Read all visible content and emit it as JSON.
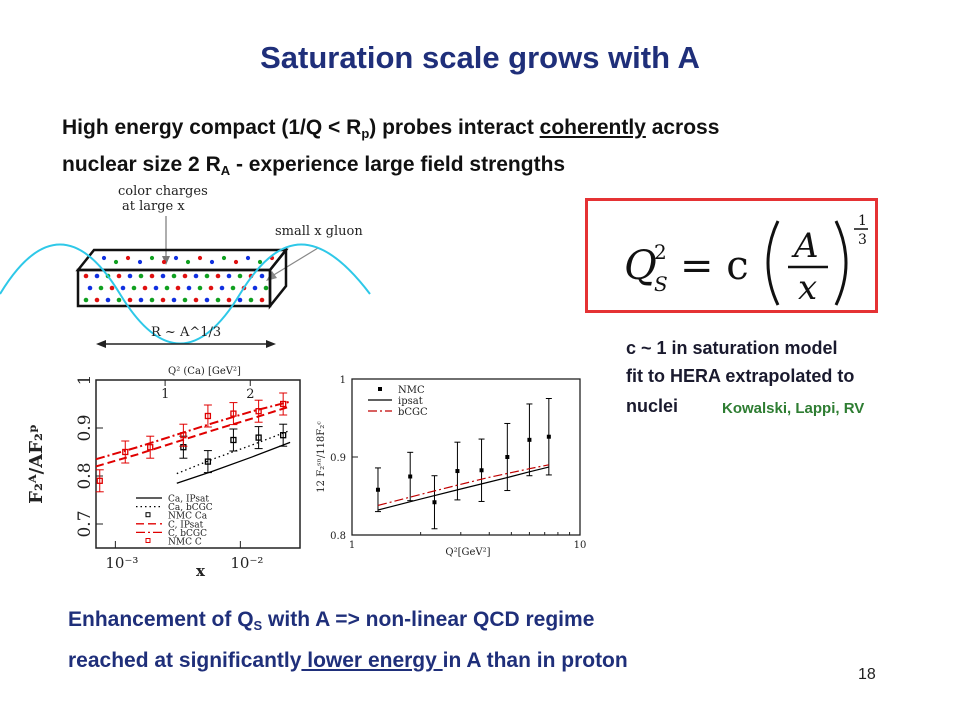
{
  "title": "Saturation scale grows with A",
  "intro": {
    "line1_a": "High energy compact (1/Q < R",
    "line1_sub": "p",
    "line1_b": ") probes interact ",
    "line1_u": "coherently",
    "line1_c": " across",
    "line2_a": "nuclear size 2 R",
    "line2_sub": "A",
    "line2_b": " - experience large field strengths"
  },
  "sketch": {
    "label_color_charges_1": "color charges",
    "label_color_charges_2": "at large x",
    "label_gluon": "small x gluon",
    "label_r": "R ~ A^1/3"
  },
  "formula": {
    "q": "Q",
    "sup2": "2",
    "sub_s": "S",
    "eq": "= c",
    "num": "A",
    "den": "x",
    "exp_num": "1",
    "exp_den": "3"
  },
  "note": {
    "line1": "c ~ 1 in saturation model",
    "line2": "fit to HERA extrapolated to",
    "line3": "nuclei",
    "refs": "Kowalski, Lappi, RV"
  },
  "conclusion": {
    "line1_a": "Enhancement of Q",
    "line1_sub": "S",
    "line1_b": " with A =>  non-linear QCD regime",
    "line2_a": "reached at significantly",
    "line2_u": " lower energy ",
    "line2_b": " in A than in proton"
  },
  "page_number": "18",
  "colors": {
    "title": "#1f2f7a",
    "box": "#e53234",
    "wave": "#2ec8e8",
    "refs": "#2e7d32"
  },
  "chart_data": [
    {
      "type": "line",
      "title": "",
      "top_axis_label": "Q² (Ca) [GeV²]",
      "top_ticks": [
        "1",
        "2"
      ],
      "xlabel": "x",
      "ylabel": "F₂ᴬ/AF₂ᵖ",
      "xscale": "log",
      "xlim": [
        0.0007,
        0.03
      ],
      "ylim": [
        0.65,
        1.0
      ],
      "x_ticks": [
        "10⁻³",
        "10⁻²"
      ],
      "y_ticks": [
        "0.7",
        "0.8",
        "0.9",
        "1"
      ],
      "legend": [
        "Ca, IPsat",
        "Ca, bCGC",
        "NMC Ca",
        "C, IPsat",
        "C, bCGC",
        "NMC C"
      ],
      "series": [
        {
          "name": "Ca, IPsat",
          "color": "#000000",
          "style": "solid",
          "x": [
            0.0031,
            0.006,
            0.0125,
            0.025
          ],
          "y": [
            0.785,
            0.81,
            0.84,
            0.87
          ]
        },
        {
          "name": "Ca, bCGC",
          "color": "#000000",
          "style": "dotted",
          "x": [
            0.0031,
            0.006,
            0.0125,
            0.025
          ],
          "y": [
            0.805,
            0.835,
            0.865,
            0.895
          ]
        },
        {
          "name": "NMC Ca",
          "color": "#000000",
          "style": "points",
          "x": [
            0.0035,
            0.0055,
            0.0088,
            0.014,
            0.022
          ],
          "y": [
            0.86,
            0.83,
            0.875,
            0.88,
            0.885
          ]
        },
        {
          "name": "C, IPsat",
          "color": "#e00000",
          "style": "dashed",
          "x": [
            0.0007,
            0.0015,
            0.003,
            0.006,
            0.0125,
            0.025
          ],
          "y": [
            0.82,
            0.845,
            0.87,
            0.895,
            0.92,
            0.945
          ]
        },
        {
          "name": "C, bCGC",
          "color": "#e00000",
          "style": "dashdot",
          "x": [
            0.0007,
            0.0015,
            0.003,
            0.006,
            0.0125,
            0.025
          ],
          "y": [
            0.835,
            0.86,
            0.885,
            0.91,
            0.935,
            0.955
          ]
        },
        {
          "name": "NMC C",
          "color": "#e00000",
          "style": "points",
          "x": [
            0.00075,
            0.0012,
            0.0019,
            0.0035,
            0.0055,
            0.0088,
            0.014,
            0.022
          ],
          "y": [
            0.79,
            0.85,
            0.86,
            0.885,
            0.925,
            0.93,
            0.935,
            0.95
          ]
        }
      ]
    },
    {
      "type": "line",
      "title": "",
      "xlabel": "Q²[GeV²]",
      "ylabel": "12 F₂ˢⁿ/118F₂ᶜ",
      "xscale": "log",
      "xlim": [
        1,
        10
      ],
      "ylim": [
        0.8,
        1.0
      ],
      "x_ticks": [
        "1",
        "10"
      ],
      "y_ticks": [
        "0.8",
        "0.9",
        "1"
      ],
      "legend": [
        "NMC",
        "ipsat",
        "bCGC"
      ],
      "series": [
        {
          "name": "NMC",
          "color": "#000000",
          "style": "points",
          "x": [
            1.3,
            1.8,
            2.3,
            2.9,
            3.7,
            4.8,
            6.0,
            7.3
          ],
          "y": [
            0.858,
            0.875,
            0.842,
            0.882,
            0.883,
            0.9,
            0.922,
            0.926
          ]
        },
        {
          "name": "ipsat",
          "color": "#000000",
          "style": "solid",
          "x": [
            1.3,
            2,
            3,
            4,
            5,
            6,
            7.3
          ],
          "y": [
            0.832,
            0.846,
            0.859,
            0.868,
            0.875,
            0.881,
            0.887
          ]
        },
        {
          "name": "bCGC",
          "color": "#c00000",
          "style": "dashdot",
          "x": [
            1.3,
            2,
            3,
            4,
            5,
            6,
            7.3
          ],
          "y": [
            0.838,
            0.852,
            0.865,
            0.874,
            0.88,
            0.885,
            0.89
          ]
        }
      ]
    }
  ]
}
